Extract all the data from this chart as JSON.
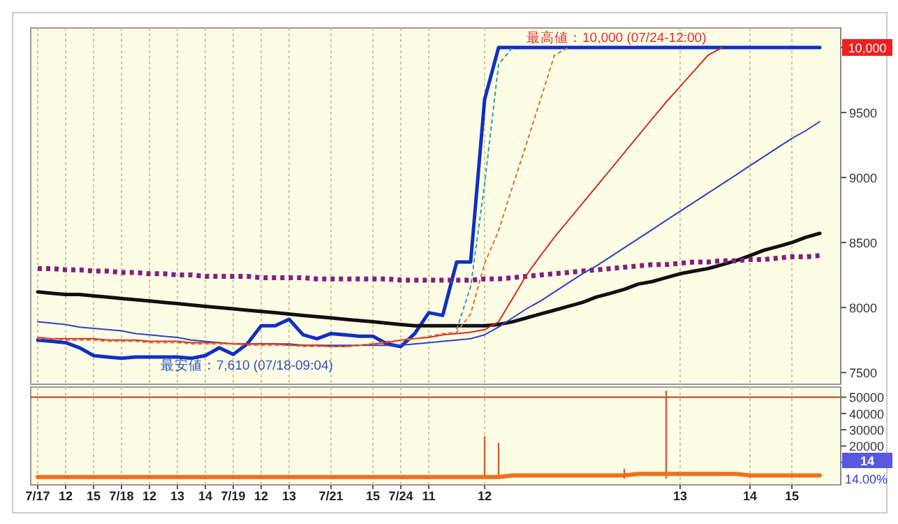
{
  "chart_data": [
    {
      "type": "line",
      "categories": [
        null,
        null,
        null,
        null,
        null,
        null,
        null,
        null,
        null,
        null,
        null,
        null,
        null,
        null,
        null,
        null,
        null,
        null,
        null,
        null,
        null,
        null,
        null,
        null,
        null,
        null,
        null,
        null,
        null,
        null,
        null,
        null,
        null,
        null,
        null,
        null,
        null,
        null,
        null,
        null,
        null,
        null,
        null,
        null,
        null,
        null,
        null,
        null,
        null,
        null,
        null,
        null,
        null,
        null,
        null,
        null,
        null,
        null
      ],
      "ylim": [
        7410,
        10150
      ],
      "yticks": [
        7500,
        8000,
        8500,
        9000,
        9500,
        {
          "value": 10000,
          "label": "10,000"
        }
      ],
      "tick_labels": "y",
      "grid": "x",
      "series": [
        {
          "color": "#1030c0",
          "values": [
            7750,
            7740,
            7730,
            7690,
            7630,
            7620,
            7610,
            7620,
            7620,
            7620,
            7620,
            7610,
            7630,
            7690,
            7640,
            7720,
            7860,
            7860,
            7910,
            7790,
            7760,
            7800,
            7790,
            7780,
            7780,
            7720,
            7700,
            7800,
            7960,
            7940,
            8350,
            8350,
            9600,
            10000,
            10000,
            10000,
            10000,
            10000,
            10000,
            10000,
            10000,
            10000,
            10000,
            10000,
            10000,
            10000,
            10000,
            10000,
            10000,
            10000,
            10000,
            10000,
            10000,
            10000,
            10000,
            10000,
            10000,
            null
          ]
        },
        {
          "color": "#101010",
          "values": [
            8120,
            8110,
            8100,
            8100,
            8090,
            8080,
            8070,
            8060,
            8050,
            8040,
            8030,
            8020,
            8010,
            8000,
            7990,
            7980,
            7970,
            7960,
            7950,
            7940,
            7930,
            7920,
            7910,
            7900,
            7890,
            7880,
            7870,
            7860,
            7860,
            7860,
            7860,
            7860,
            7860,
            7870,
            7890,
            7920,
            7950,
            7980,
            8010,
            8040,
            8080,
            8110,
            8140,
            8180,
            8200,
            8230,
            8260,
            8280,
            8300,
            8330,
            8360,
            8400,
            8440,
            8470,
            8500,
            8540,
            8570,
            null
          ]
        },
        {
          "color": "#802080",
          "line_style": "dotted",
          "values": [
            8300,
            8300,
            8290,
            8290,
            8280,
            8280,
            8270,
            8270,
            8260,
            8260,
            8250,
            8250,
            8240,
            8240,
            8240,
            8240,
            8230,
            8230,
            8230,
            8230,
            8220,
            8220,
            8220,
            8220,
            8220,
            8220,
            8210,
            8210,
            8210,
            8210,
            8210,
            8210,
            8220,
            8220,
            8230,
            8240,
            8250,
            8260,
            8270,
            8280,
            8290,
            8300,
            8310,
            8320,
            8330,
            8330,
            8340,
            8350,
            8350,
            8360,
            8360,
            8370,
            8370,
            8380,
            8390,
            8390,
            8400,
            null
          ]
        },
        {
          "color": "#3040c0",
          "values": [
            7890,
            7880,
            7870,
            7850,
            7840,
            7830,
            7820,
            7800,
            7790,
            7780,
            7770,
            7750,
            7740,
            7730,
            7720,
            7720,
            7720,
            7720,
            7720,
            7710,
            7710,
            7710,
            7710,
            7710,
            7710,
            7710,
            7710,
            7720,
            7730,
            7740,
            7750,
            7760,
            7790,
            7850,
            7920,
            7990,
            8050,
            8120,
            8190,
            8260,
            8320,
            8390,
            8460,
            8530,
            8600,
            8670,
            8740,
            8810,
            8880,
            8950,
            9020,
            9090,
            9160,
            9230,
            9300,
            9360,
            9430,
            null
          ]
        },
        {
          "color": "#d03020",
          "values": [
            7770,
            7760,
            7760,
            7760,
            7760,
            7750,
            7750,
            7750,
            7740,
            7740,
            7740,
            7730,
            7730,
            7730,
            7720,
            7720,
            7720,
            7720,
            7710,
            7710,
            7710,
            7700,
            7700,
            7710,
            7720,
            7730,
            7750,
            7760,
            7770,
            7790,
            7800,
            7810,
            7830,
            7890,
            8070,
            8250,
            8400,
            8540,
            8670,
            8800,
            8930,
            9060,
            9190,
            9320,
            9450,
            9580,
            9700,
            9820,
            9940,
            10000,
            null,
            null,
            null,
            null,
            null,
            null,
            null,
            null
          ]
        },
        {
          "color": "#e07030",
          "line_style": "dashed",
          "values": [
            7760,
            7760,
            7750,
            7750,
            7750,
            7740,
            7740,
            7740,
            7730,
            7730,
            7730,
            7720,
            7720,
            7720,
            7720,
            7710,
            7710,
            7710,
            7710,
            7700,
            7700,
            7700,
            7700,
            7710,
            7720,
            7740,
            7750,
            7760,
            7780,
            7800,
            7810,
            7950,
            8340,
            8590,
            8930,
            9260,
            9600,
            9940,
            10000,
            null,
            null,
            null,
            null,
            null,
            null,
            null,
            null,
            null,
            null,
            null,
            null,
            null,
            null,
            null,
            null,
            null,
            null,
            null
          ]
        },
        {
          "color": "#30a0a0",
          "line_style": "dashed",
          "values": [
            null,
            null,
            null,
            null,
            null,
            null,
            null,
            null,
            null,
            null,
            null,
            null,
            null,
            null,
            null,
            null,
            null,
            null,
            null,
            null,
            null,
            null,
            null,
            null,
            null,
            null,
            null,
            null,
            null,
            null,
            7830,
            8160,
            8950,
            9870,
            10000,
            null,
            null,
            null,
            null,
            null,
            null,
            null,
            null,
            null,
            null,
            null,
            null,
            null,
            null,
            null,
            null,
            null,
            null,
            null,
            null,
            null,
            null,
            null
          ]
        }
      ],
      "annotations": [
        {
          "text": "最高値：10,000 (07/24-12:00)",
          "y": 10000
        },
        "最安値：7,610 (07/18-09:04)"
      ]
    },
    {
      "type": "bar",
      "categories": [
        "7/17",
        null,
        "12",
        null,
        "15",
        null,
        "7/18",
        null,
        "12",
        null,
        "13",
        null,
        "14",
        null,
        "7/19",
        null,
        "12",
        null,
        "13",
        null,
        null,
        "7/21",
        null,
        null,
        "15",
        null,
        "7/24",
        null,
        "11",
        null,
        null,
        null,
        "12",
        null,
        null,
        null,
        null,
        null,
        null,
        null,
        null,
        null,
        null,
        null,
        null,
        null,
        "13",
        null,
        null,
        null,
        null,
        "14",
        null,
        null,
        "15",
        null,
        null,
        null
      ],
      "ylim": [
        -3800,
        56200
      ],
      "yticks": [
        {
          "value": 10000,
          "label": null
        },
        20000,
        30000,
        40000,
        50000
      ],
      "grid": "x",
      "series": [
        {
          "color": "#d06030",
          "values": [
            null,
            null,
            null,
            null,
            null,
            null,
            null,
            null,
            null,
            null,
            null,
            null,
            null,
            null,
            null,
            null,
            null,
            null,
            null,
            null,
            null,
            null,
            null,
            null,
            null,
            null,
            null,
            null,
            null,
            null,
            null,
            null,
            26000,
            22000,
            null,
            null,
            null,
            null,
            null,
            null,
            null,
            null,
            6000,
            null,
            null,
            54000,
            null,
            null,
            null,
            null,
            null,
            null,
            null,
            null,
            null,
            null,
            null,
            null
          ]
        },
        {
          "type": "line",
          "color": "#f07020",
          "values": [
            1000,
            1000,
            1000,
            1000,
            1000,
            1000,
            1000,
            1000,
            1000,
            1000,
            1000,
            1000,
            1000,
            1000,
            1000,
            1000,
            1000,
            1000,
            1000,
            1000,
            1000,
            1000,
            1000,
            1000,
            1000,
            1000,
            1000,
            1000,
            1000,
            1000,
            1000,
            1000,
            1000,
            1000,
            2000,
            2000,
            2000,
            2000,
            2000,
            2000,
            2000,
            2000,
            2000,
            3000,
            3000,
            3000,
            3000,
            3000,
            3000,
            3000,
            3000,
            2000,
            2000,
            2000,
            2000,
            2000,
            2000,
            null
          ]
        }
      ],
      "ref_lines": [
        {
          "axis": "y",
          "value": 50000,
          "color": "#b04020"
        }
      ],
      "annotations": [
        "14",
        "14.00%"
      ]
    }
  ]
}
